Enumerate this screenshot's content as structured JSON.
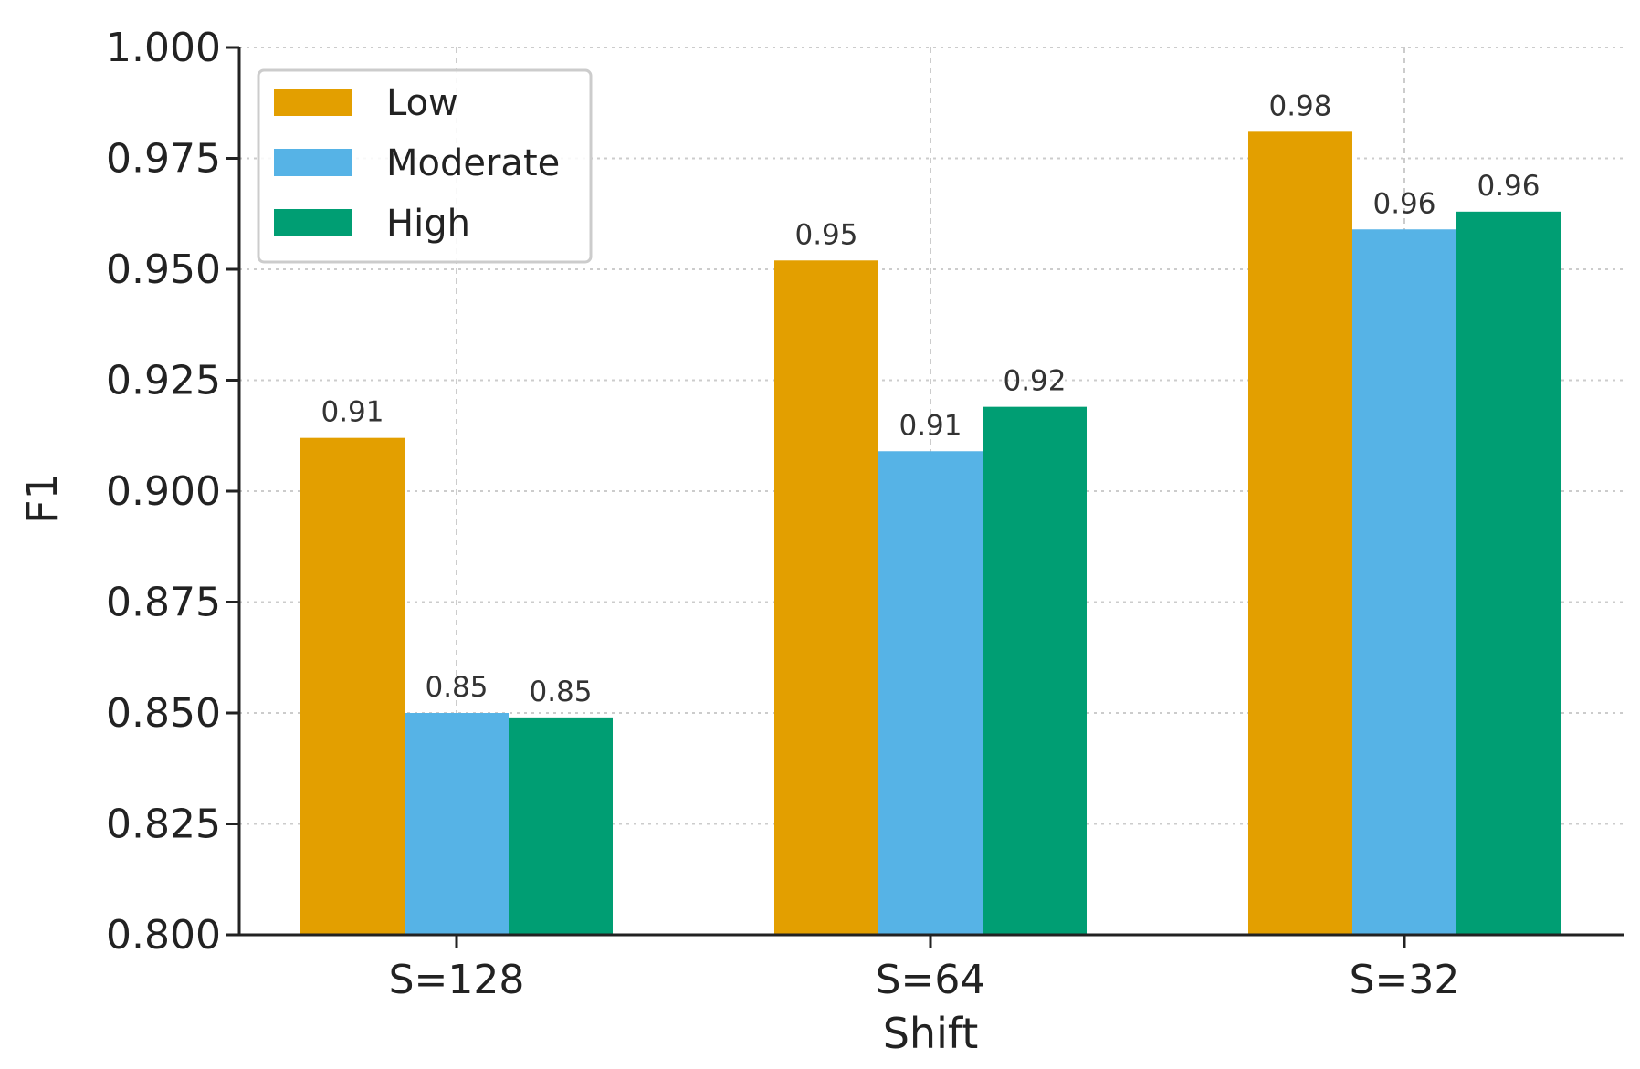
{
  "chart_data": {
    "type": "bar",
    "title": "",
    "xlabel": "Shift",
    "ylabel": "F1",
    "categories": [
      "S=128",
      "S=64",
      "S=32"
    ],
    "series": [
      {
        "name": "Low",
        "color": "#E39F00",
        "values": [
          0.912,
          0.952,
          0.981
        ],
        "labels": [
          "0.91",
          "0.95",
          "0.98"
        ]
      },
      {
        "name": "Moderate",
        "color": "#56B3E6",
        "values": [
          0.85,
          0.909,
          0.959
        ],
        "labels": [
          "0.85",
          "0.91",
          "0.96"
        ]
      },
      {
        "name": "High",
        "color": "#009E73",
        "values": [
          0.849,
          0.919,
          0.963
        ],
        "labels": [
          "0.85",
          "0.92",
          "0.96"
        ]
      }
    ],
    "ylim": [
      0.8,
      1.0
    ],
    "yticks": [
      0.8,
      0.825,
      0.85,
      0.875,
      0.9,
      0.925,
      0.95,
      0.975,
      1.0
    ],
    "ytick_labels": [
      "0.800",
      "0.825",
      "0.850",
      "0.875",
      "0.900",
      "0.925",
      "0.950",
      "0.975",
      "1.000"
    ],
    "grid": true,
    "legend_position": "top-left"
  }
}
